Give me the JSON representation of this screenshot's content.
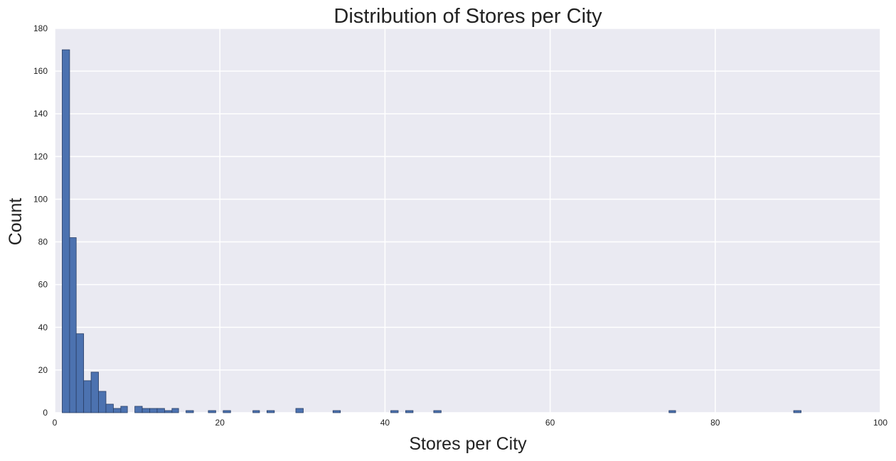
{
  "chart_data": {
    "type": "bar",
    "title": "Distribution of Stores per City",
    "xlabel": "Stores per City",
    "ylabel": "Count",
    "xlim": [
      0,
      100
    ],
    "ylim": [
      0,
      180
    ],
    "xticks": [
      0,
      20,
      40,
      60,
      80,
      100
    ],
    "yticks": [
      0,
      20,
      40,
      60,
      80,
      100,
      120,
      140,
      160,
      180
    ],
    "grid": true,
    "bar_color": "#4C72B0",
    "edge_color": "#2a3f66",
    "background_color": "#EAEAF2",
    "bins": [
      {
        "start": 0.9,
        "end": 1.8,
        "count": 170
      },
      {
        "start": 1.8,
        "end": 2.6,
        "count": 82
      },
      {
        "start": 2.6,
        "end": 3.5,
        "count": 37
      },
      {
        "start": 3.5,
        "end": 4.4,
        "count": 15
      },
      {
        "start": 4.4,
        "end": 5.3,
        "count": 19
      },
      {
        "start": 5.3,
        "end": 6.2,
        "count": 10
      },
      {
        "start": 6.2,
        "end": 7.1,
        "count": 4
      },
      {
        "start": 7.1,
        "end": 8.0,
        "count": 2
      },
      {
        "start": 8.0,
        "end": 8.8,
        "count": 3
      },
      {
        "start": 9.7,
        "end": 10.6,
        "count": 3
      },
      {
        "start": 10.6,
        "end": 11.5,
        "count": 2
      },
      {
        "start": 11.5,
        "end": 12.4,
        "count": 2
      },
      {
        "start": 12.4,
        "end": 13.3,
        "count": 2
      },
      {
        "start": 13.3,
        "end": 14.2,
        "count": 1
      },
      {
        "start": 14.2,
        "end": 15.0,
        "count": 2
      },
      {
        "start": 15.9,
        "end": 16.8,
        "count": 1
      },
      {
        "start": 18.6,
        "end": 19.5,
        "count": 1
      },
      {
        "start": 20.4,
        "end": 21.3,
        "count": 1
      },
      {
        "start": 24.0,
        "end": 24.8,
        "count": 1
      },
      {
        "start": 25.7,
        "end": 26.6,
        "count": 1
      },
      {
        "start": 29.2,
        "end": 30.1,
        "count": 2
      },
      {
        "start": 33.7,
        "end": 34.6,
        "count": 1
      },
      {
        "start": 40.7,
        "end": 41.6,
        "count": 1
      },
      {
        "start": 42.5,
        "end": 43.4,
        "count": 1
      },
      {
        "start": 45.9,
        "end": 46.8,
        "count": 1
      },
      {
        "start": 74.4,
        "end": 75.2,
        "count": 1
      },
      {
        "start": 89.5,
        "end": 90.4,
        "count": 1
      }
    ]
  }
}
